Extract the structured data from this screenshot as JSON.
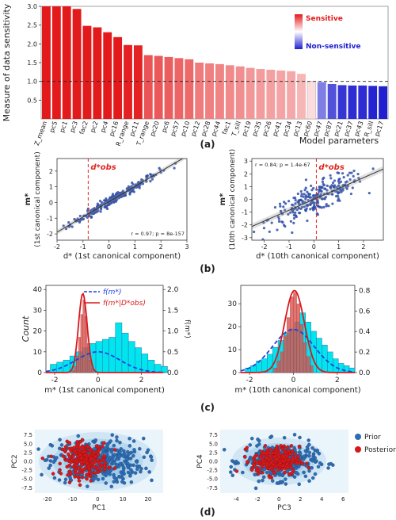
{
  "chart_data": [
    {
      "id": "a",
      "type": "bar",
      "panel_label": "(a)",
      "ylabel": "Measure of data sensitivity",
      "xlabel": "Model parameters",
      "ylim": [
        0,
        3.0
      ],
      "yticks": [
        0,
        0.5,
        1.0,
        1.5,
        2.0,
        2.5,
        3.0
      ],
      "ytick_labels": [
        "",
        "0.5",
        "1.0",
        "1.5",
        "2.0",
        "2.5",
        "3.0"
      ],
      "threshold": 1.0,
      "categories": [
        "Z_mean",
        "pc5",
        "pc1",
        "pc3",
        "fac2",
        "pc2",
        "pc4",
        "pc16",
        "R_range",
        "pc11",
        "T_range",
        "pc20",
        "pc6",
        "pc57",
        "pc10",
        "pc12",
        "pc28",
        "pc44",
        "fac1",
        "T_sill",
        "pc19",
        "pc35",
        "pc26",
        "pc41",
        "pc34",
        "pc13",
        "pc60",
        "pc47",
        "pc87",
        "pc21",
        "pc37",
        "pc43",
        "R_sill",
        "pc17"
      ],
      "values": [
        3.0,
        3.0,
        3.0,
        2.93,
        2.48,
        2.44,
        2.31,
        2.18,
        1.97,
        1.96,
        1.7,
        1.68,
        1.65,
        1.62,
        1.59,
        1.5,
        1.48,
        1.46,
        1.43,
        1.4,
        1.36,
        1.33,
        1.31,
        1.29,
        1.27,
        1.2,
        1.0,
        0.98,
        0.93,
        0.9,
        0.89,
        0.89,
        0.88,
        0.87
      ],
      "colorbar": {
        "top_label": "Sensitive",
        "bottom_label": "Non-sensitive",
        "top_color": "#e31a1c",
        "mid_color": "#ffffff",
        "bottom_color": "#2020d0"
      }
    },
    {
      "id": "b1",
      "type": "scatter",
      "ylabel_main": "m*",
      "ylabel_sub": "(1st canonical component)",
      "xlabel": "d* (1st canonical component)",
      "xlim": [
        -2,
        3
      ],
      "ylim": [
        -2.4,
        2.8
      ],
      "xticks": [
        -2,
        -1,
        0,
        1,
        2,
        3
      ],
      "yticks": [
        -2,
        -1,
        0,
        1,
        2
      ],
      "annotation": "r = 0.97; p = 8e-157",
      "d_obs_label": "d*obs",
      "d_obs": -0.8,
      "fit_line": {
        "slope": 0.97,
        "intercept": 0.05
      },
      "n_points": 260,
      "noise": 0.15,
      "x_mean": 0.2,
      "x_sd": 0.85
    },
    {
      "id": "b2",
      "type": "scatter",
      "ylabel_main": "m*",
      "ylabel_sub": "(10th canonical component)",
      "xlabel": "d* (10th canonical component)",
      "xlim": [
        -2.5,
        2.8
      ],
      "ylim": [
        -3.2,
        3.2
      ],
      "xticks": [
        -2,
        -1,
        0,
        1,
        2
      ],
      "yticks": [
        -3,
        -2,
        -1,
        0,
        1,
        2,
        3
      ],
      "annotation": "r = 0.84; p = 1.4e-67",
      "d_obs_label": "d*obs",
      "d_obs": 0.1,
      "fit_line": {
        "slope": 0.85,
        "intercept": 0.0
      },
      "n_points": 260,
      "noise": 0.55,
      "x_mean": 0.1,
      "x_sd": 0.95,
      "panel_label": "(b)"
    },
    {
      "id": "c1",
      "type": "histogram",
      "ylabel_left": "Count",
      "ylabel_right": "f(m*)",
      "xlabel": "m* (1st canonical component)",
      "xlim": [
        -2.4,
        3.0
      ],
      "ylim_left": [
        0,
        42
      ],
      "ylim_right": [
        0,
        2.1
      ],
      "xticks": [
        -2,
        0,
        2
      ],
      "yticks_left": [
        0,
        10,
        20,
        30,
        40
      ],
      "yticks_right": [
        0.0,
        0.5,
        1.0,
        1.5,
        2.0
      ],
      "prior_bins": {
        "start": -2.2,
        "width": 0.3,
        "counts": [
          4,
          5,
          6,
          8,
          10,
          12,
          14,
          15,
          16,
          17,
          24,
          19,
          15,
          12,
          9,
          6,
          4,
          3
        ]
      },
      "posterior_bins": {
        "start": -1.2,
        "width": 0.1,
        "counts": [
          1,
          3,
          8,
          17,
          28,
          35,
          27,
          14,
          6,
          2
        ]
      },
      "prior_curve": {
        "mean": 0.0,
        "sd": 1.0,
        "scale": 0.5
      },
      "posterior_curve": {
        "mean": -0.7,
        "sd": 0.2,
        "scale": 1.9
      },
      "legend": [
        "f(m*)",
        "f(m*|D*obs)"
      ]
    },
    {
      "id": "c2",
      "type": "histogram",
      "xlabel": "m* (10th canonical component)",
      "xlim": [
        -2.4,
        2.8
      ],
      "ylim_left": [
        0,
        38
      ],
      "ylim_right": [
        0,
        0.85
      ],
      "xticks": [
        -2,
        0,
        2
      ],
      "yticks_left": [
        0,
        10,
        20,
        30
      ],
      "yticks_right": [
        0.0,
        0.2,
        0.4,
        0.6,
        0.8
      ],
      "prior_bins": {
        "start": -2.2,
        "width": 0.25,
        "counts": [
          2,
          3,
          5,
          6,
          8,
          11,
          14,
          17,
          19,
          22,
          26,
          22,
          18,
          15,
          12,
          9,
          6,
          4,
          3,
          2
        ]
      },
      "posterior_bins": {
        "start": -0.9,
        "width": 0.15,
        "counts": [
          2,
          5,
          9,
          16,
          24,
          33,
          35,
          30,
          21,
          13,
          7,
          3
        ]
      },
      "prior_curve": {
        "mean": 0.0,
        "sd": 0.95,
        "scale": 0.42
      },
      "posterior_curve": {
        "mean": 0.05,
        "sd": 0.45,
        "scale": 0.8
      },
      "panel_label": "(c)"
    },
    {
      "id": "d1",
      "type": "scatter",
      "xlabel": "PC1",
      "ylabel": "PC2",
      "xlim": [
        -25,
        26
      ],
      "ylim": [
        -9,
        9
      ],
      "xticks": [
        -20,
        -10,
        0,
        10,
        20
      ],
      "yticks": [
        -7.5,
        -5.0,
        -2.5,
        0.0,
        2.5,
        5.0,
        7.5
      ],
      "ytick_labels": [
        "-7.5",
        "-5.0",
        "-2.5",
        "0.0",
        "2.5",
        "5.0",
        "7.5"
      ],
      "prior": {
        "mx": 0,
        "my": 0,
        "sx": 9,
        "sy": 3.2,
        "n": 380
      },
      "posterior": {
        "mx": -5,
        "my": 0.5,
        "sx": 4.5,
        "sy": 2.3,
        "n": 230
      }
    },
    {
      "id": "d2",
      "type": "scatter",
      "xlabel": "PC3",
      "ylabel": "PC4",
      "xlim": [
        -5.5,
        6.5
      ],
      "ylim": [
        -9,
        9
      ],
      "xticks": [
        -4,
        -2,
        0,
        2,
        4,
        6
      ],
      "yticks": [
        -7.5,
        -5.0,
        -2.5,
        0.0,
        2.5,
        5.0,
        7.5
      ],
      "ytick_labels": [
        "-7.5",
        "-5.0",
        "-2.5",
        "0.0",
        "2.5",
        "5.0",
        "7.5"
      ],
      "prior": {
        "mx": 0,
        "my": 0,
        "sx": 1.7,
        "sy": 2.6,
        "n": 380
      },
      "posterior": {
        "mx": -0.3,
        "my": 0.2,
        "sx": 1.1,
        "sy": 2.0,
        "n": 230
      },
      "panel_label": "(d)"
    }
  ],
  "legend_d": [
    {
      "name": "Prior",
      "color": "#2f6db3"
    },
    {
      "name": "Posterior",
      "color": "#d7191c"
    }
  ],
  "colors": {
    "scatter_blue": "#2f4fa8",
    "hist_cyan": "#00e5ee",
    "hist_red": "#d9534f",
    "curve_blue": "#1f3fe0",
    "curve_red": "#d7191c",
    "kde_fill": "#5fa8e0"
  }
}
